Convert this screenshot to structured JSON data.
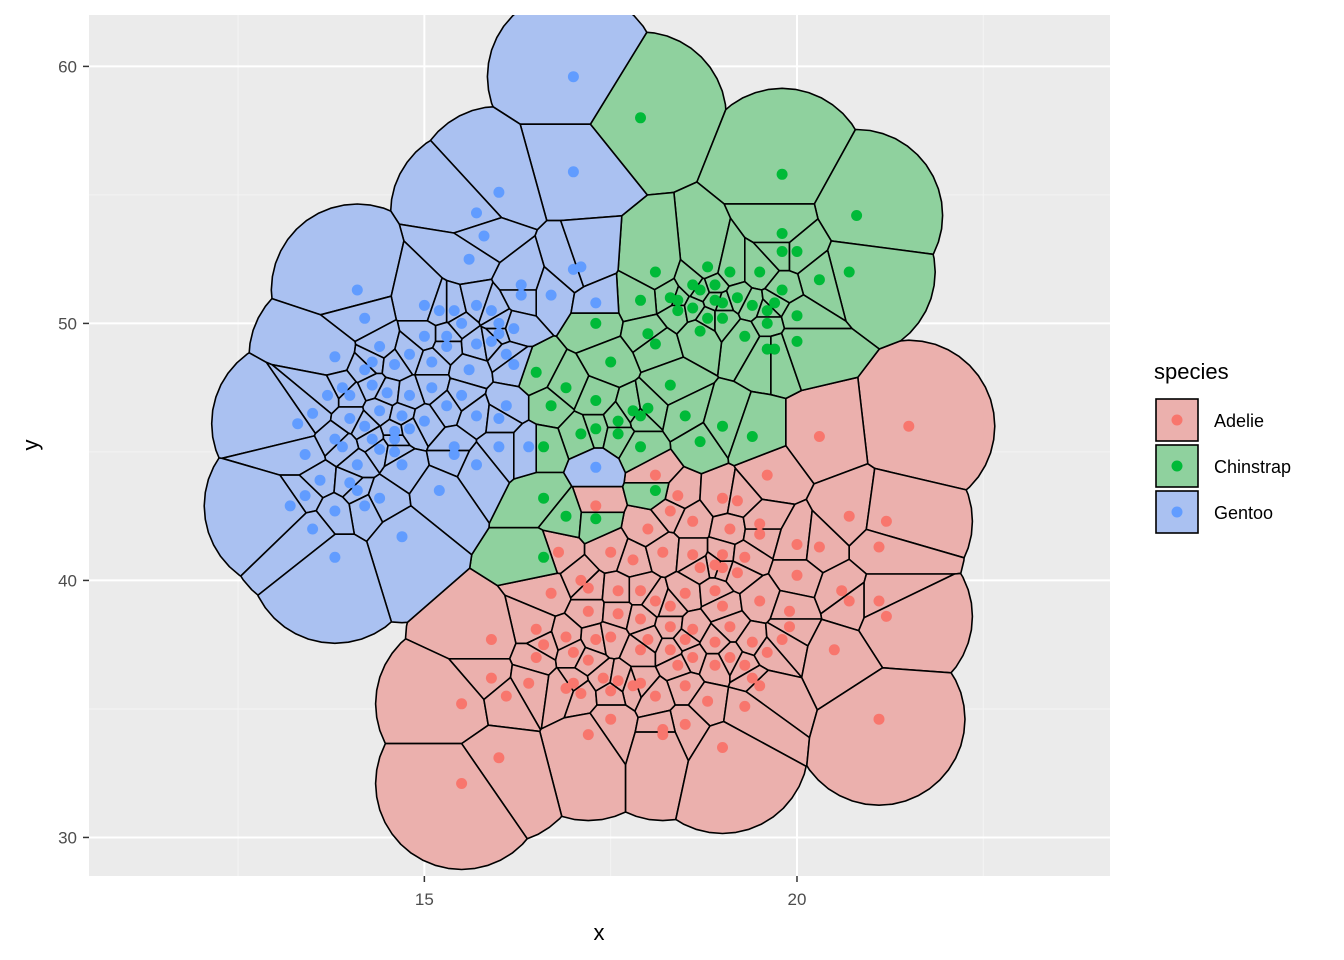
{
  "chart_data": {
    "type": "scatter",
    "subtype": "voronoi tessellation with points",
    "xlabel": "x",
    "ylabel": "y",
    "xlim": [
      10.5,
      24.2
    ],
    "ylim": [
      28.5,
      62.0
    ],
    "x_ticks": [
      15,
      20
    ],
    "y_ticks": [
      30,
      40,
      50,
      60
    ],
    "x_tick_labels": [
      "15",
      "20"
    ],
    "y_tick_labels": [
      "30",
      "40",
      "50",
      "60"
    ],
    "grid": true,
    "legend_title": "species",
    "legend_position": "right",
    "series": [
      {
        "name": "Adelie",
        "point_color": "#F8766D",
        "fill_color": "#EBB0AD",
        "points": [
          [
            21.5,
            46.0
          ],
          [
            20.3,
            45.6
          ],
          [
            18.1,
            44.1
          ],
          [
            19.6,
            44.1
          ],
          [
            18.4,
            43.3
          ],
          [
            17.3,
            42.9
          ],
          [
            19.0,
            43.2
          ],
          [
            19.2,
            43.1
          ],
          [
            20.7,
            42.5
          ],
          [
            21.2,
            42.3
          ],
          [
            18.3,
            42.7
          ],
          [
            18.6,
            42.3
          ],
          [
            18.0,
            42.0
          ],
          [
            19.1,
            42.0
          ],
          [
            19.5,
            41.8
          ],
          [
            19.5,
            42.2
          ],
          [
            20.0,
            41.4
          ],
          [
            20.3,
            41.3
          ],
          [
            21.1,
            41.3
          ],
          [
            16.8,
            41.1
          ],
          [
            17.5,
            41.1
          ],
          [
            17.8,
            40.8
          ],
          [
            18.2,
            41.1
          ],
          [
            18.6,
            41.0
          ],
          [
            19.0,
            41.0
          ],
          [
            18.9,
            40.6
          ],
          [
            19.0,
            40.5
          ],
          [
            19.3,
            40.9
          ],
          [
            18.7,
            40.5
          ],
          [
            19.2,
            40.3
          ],
          [
            20.0,
            40.2
          ],
          [
            20.6,
            39.6
          ],
          [
            20.7,
            39.2
          ],
          [
            21.1,
            39.2
          ],
          [
            21.2,
            38.6
          ],
          [
            16.7,
            39.5
          ],
          [
            17.1,
            40.0
          ],
          [
            17.2,
            39.7
          ],
          [
            17.6,
            39.6
          ],
          [
            17.9,
            39.6
          ],
          [
            18.1,
            39.2
          ],
          [
            18.3,
            39.0
          ],
          [
            18.5,
            39.5
          ],
          [
            18.9,
            39.6
          ],
          [
            19.0,
            39.0
          ],
          [
            19.5,
            39.2
          ],
          [
            19.9,
            38.8
          ],
          [
            17.2,
            38.8
          ],
          [
            17.6,
            38.7
          ],
          [
            17.9,
            38.5
          ],
          [
            18.3,
            38.2
          ],
          [
            18.6,
            38.1
          ],
          [
            19.1,
            38.2
          ],
          [
            19.9,
            38.2
          ],
          [
            16.5,
            38.1
          ],
          [
            16.9,
            37.8
          ],
          [
            17.3,
            37.7
          ],
          [
            17.5,
            37.8
          ],
          [
            18.0,
            37.7
          ],
          [
            18.5,
            37.7
          ],
          [
            18.9,
            37.6
          ],
          [
            19.4,
            37.6
          ],
          [
            19.8,
            37.7
          ],
          [
            20.5,
            37.3
          ],
          [
            15.9,
            37.7
          ],
          [
            16.6,
            37.5
          ],
          [
            17.0,
            37.2
          ],
          [
            17.9,
            37.3
          ],
          [
            18.3,
            37.3
          ],
          [
            18.6,
            37.0
          ],
          [
            19.1,
            37.0
          ],
          [
            19.6,
            37.2
          ],
          [
            16.5,
            37.0
          ],
          [
            17.2,
            36.9
          ],
          [
            18.4,
            36.7
          ],
          [
            18.9,
            36.7
          ],
          [
            19.3,
            36.7
          ],
          [
            17.0,
            36.0
          ],
          [
            17.4,
            36.2
          ],
          [
            17.6,
            36.1
          ],
          [
            17.8,
            35.9
          ],
          [
            17.9,
            36.0
          ],
          [
            18.5,
            35.9
          ],
          [
            19.5,
            35.9
          ],
          [
            19.4,
            36.2
          ],
          [
            15.9,
            36.2
          ],
          [
            16.4,
            36.0
          ],
          [
            16.9,
            35.8
          ],
          [
            17.1,
            35.6
          ],
          [
            17.5,
            35.7
          ],
          [
            18.1,
            35.5
          ],
          [
            18.8,
            35.3
          ],
          [
            19.3,
            35.1
          ],
          [
            15.5,
            35.2
          ],
          [
            16.1,
            35.5
          ],
          [
            17.5,
            34.6
          ],
          [
            18.5,
            34.4
          ],
          [
            18.2,
            34.2
          ],
          [
            17.2,
            34.0
          ],
          [
            18.2,
            34.0
          ],
          [
            19.0,
            33.5
          ],
          [
            21.1,
            34.6
          ],
          [
            16.0,
            33.1
          ],
          [
            15.5,
            32.1
          ]
        ]
      },
      {
        "name": "Chinstrap",
        "point_color": "#00BA38",
        "fill_color": "#8FD19E",
        "points": [
          [
            17.9,
            58.0
          ],
          [
            19.8,
            55.8
          ],
          [
            20.8,
            54.2
          ],
          [
            19.8,
            53.5
          ],
          [
            19.8,
            52.8
          ],
          [
            20.0,
            52.8
          ],
          [
            18.8,
            52.2
          ],
          [
            19.1,
            52.0
          ],
          [
            19.5,
            52.0
          ],
          [
            20.7,
            52.0
          ],
          [
            18.1,
            52.0
          ],
          [
            20.3,
            51.7
          ],
          [
            18.6,
            51.5
          ],
          [
            18.9,
            51.5
          ],
          [
            18.7,
            51.3
          ],
          [
            19.8,
            51.3
          ],
          [
            18.3,
            51.0
          ],
          [
            18.4,
            50.9
          ],
          [
            18.9,
            50.9
          ],
          [
            19.0,
            50.8
          ],
          [
            19.2,
            51.0
          ],
          [
            17.9,
            50.9
          ],
          [
            18.4,
            50.5
          ],
          [
            18.6,
            50.6
          ],
          [
            19.4,
            50.7
          ],
          [
            19.6,
            50.5
          ],
          [
            19.7,
            50.8
          ],
          [
            20.0,
            50.3
          ],
          [
            17.3,
            50.0
          ],
          [
            18.8,
            50.2
          ],
          [
            19.0,
            50.2
          ],
          [
            19.3,
            49.5
          ],
          [
            19.6,
            50.0
          ],
          [
            18.0,
            49.6
          ],
          [
            18.1,
            49.2
          ],
          [
            18.7,
            49.7
          ],
          [
            19.6,
            49.0
          ],
          [
            19.7,
            49.0
          ],
          [
            20.0,
            49.3
          ],
          [
            17.5,
            48.5
          ],
          [
            16.5,
            48.1
          ],
          [
            18.3,
            47.6
          ],
          [
            16.9,
            47.5
          ],
          [
            17.3,
            47.0
          ],
          [
            16.7,
            46.8
          ],
          [
            17.8,
            46.6
          ],
          [
            17.9,
            46.4
          ],
          [
            18.0,
            46.7
          ],
          [
            18.5,
            46.4
          ],
          [
            17.6,
            46.2
          ],
          [
            17.3,
            45.9
          ],
          [
            17.1,
            45.7
          ],
          [
            17.6,
            45.7
          ],
          [
            18.7,
            45.4
          ],
          [
            19.0,
            46.0
          ],
          [
            17.9,
            45.2
          ],
          [
            16.6,
            45.2
          ],
          [
            19.4,
            45.6
          ],
          [
            18.1,
            43.5
          ],
          [
            16.6,
            43.2
          ],
          [
            16.9,
            42.5
          ],
          [
            17.3,
            42.4
          ],
          [
            16.6,
            40.9
          ]
        ]
      },
      {
        "name": "Gentoo",
        "point_color": "#619CFF",
        "fill_color": "#AAC1F1",
        "points": [
          [
            17.0,
            59.6
          ],
          [
            17.0,
            55.9
          ],
          [
            16.0,
            55.1
          ],
          [
            15.7,
            54.3
          ],
          [
            15.8,
            53.4
          ],
          [
            15.6,
            52.5
          ],
          [
            17.0,
            52.1
          ],
          [
            17.1,
            52.2
          ],
          [
            16.3,
            51.5
          ],
          [
            16.7,
            51.1
          ],
          [
            16.3,
            51.1
          ],
          [
            14.1,
            51.3
          ],
          [
            17.3,
            50.8
          ],
          [
            15.0,
            50.7
          ],
          [
            15.2,
            50.5
          ],
          [
            15.4,
            50.5
          ],
          [
            15.7,
            50.7
          ],
          [
            15.9,
            50.5
          ],
          [
            14.2,
            50.2
          ],
          [
            15.5,
            50.0
          ],
          [
            16.0,
            50.0
          ],
          [
            16.2,
            49.8
          ],
          [
            15.3,
            49.5
          ],
          [
            15.7,
            49.2
          ],
          [
            15.9,
            49.3
          ],
          [
            16.0,
            49.6
          ],
          [
            15.0,
            49.5
          ],
          [
            15.3,
            49.1
          ],
          [
            14.4,
            49.1
          ],
          [
            14.8,
            48.8
          ],
          [
            16.1,
            48.8
          ],
          [
            13.8,
            48.7
          ],
          [
            14.3,
            48.5
          ],
          [
            14.6,
            48.4
          ],
          [
            15.1,
            48.5
          ],
          [
            15.6,
            48.2
          ],
          [
            14.2,
            48.2
          ],
          [
            16.2,
            48.4
          ],
          [
            13.9,
            47.5
          ],
          [
            14.3,
            47.6
          ],
          [
            14.5,
            47.3
          ],
          [
            14.8,
            47.2
          ],
          [
            15.1,
            47.5
          ],
          [
            15.5,
            47.2
          ],
          [
            13.7,
            47.2
          ],
          [
            14.0,
            47.2
          ],
          [
            15.3,
            46.8
          ],
          [
            16.1,
            46.8
          ],
          [
            13.5,
            46.5
          ],
          [
            14.0,
            46.3
          ],
          [
            14.4,
            46.6
          ],
          [
            14.7,
            46.4
          ],
          [
            15.0,
            46.2
          ],
          [
            15.7,
            46.4
          ],
          [
            16.0,
            46.3
          ],
          [
            13.3,
            46.1
          ],
          [
            14.2,
            46.0
          ],
          [
            14.6,
            45.8
          ],
          [
            14.8,
            45.9
          ],
          [
            13.8,
            45.5
          ],
          [
            14.3,
            45.5
          ],
          [
            14.6,
            45.5
          ],
          [
            15.4,
            45.2
          ],
          [
            16.0,
            45.2
          ],
          [
            16.4,
            45.2
          ],
          [
            13.4,
            44.9
          ],
          [
            13.9,
            45.2
          ],
          [
            14.4,
            45.1
          ],
          [
            14.6,
            45.0
          ],
          [
            15.4,
            44.9
          ],
          [
            14.1,
            44.5
          ],
          [
            14.7,
            44.5
          ],
          [
            15.7,
            44.5
          ],
          [
            17.3,
            44.4
          ],
          [
            13.6,
            43.9
          ],
          [
            14.0,
            43.8
          ],
          [
            14.1,
            43.5
          ],
          [
            14.4,
            43.2
          ],
          [
            13.4,
            43.3
          ],
          [
            15.2,
            43.5
          ],
          [
            13.2,
            42.9
          ],
          [
            14.2,
            42.9
          ],
          [
            13.8,
            42.7
          ],
          [
            13.5,
            42.0
          ],
          [
            14.7,
            41.7
          ],
          [
            13.8,
            40.9
          ]
        ]
      }
    ]
  }
}
